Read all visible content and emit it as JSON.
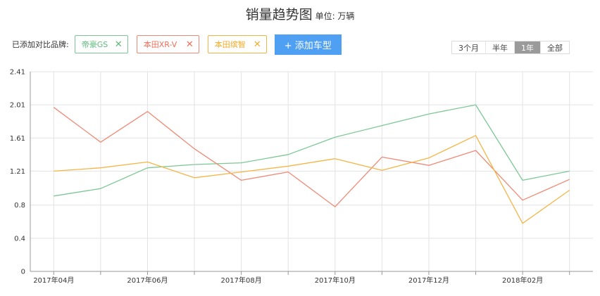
{
  "header": {
    "title": "销量趋势图",
    "unit": "单位: 万辆"
  },
  "compare": {
    "label": "已添加对比品牌:",
    "chips": [
      {
        "label": "帝豪GS",
        "color": "#5db97b"
      },
      {
        "label": "本田XR-V",
        "color": "#ef6e5a"
      },
      {
        "label": "本田缤智",
        "color": "#f3ab27"
      }
    ],
    "add_button": "+ 添加车型"
  },
  "range_buttons": {
    "items": [
      "3个月",
      "半年",
      "1年",
      "全部"
    ],
    "active": "1年"
  },
  "chart_data": {
    "type": "line",
    "title": "销量趋势图",
    "x": [
      "2017-04",
      "2017-05",
      "2017-06",
      "2017-07",
      "2017-08",
      "2017-09",
      "2017-10",
      "2017-11",
      "2017-12",
      "2018-01",
      "2018-02",
      "2018-03"
    ],
    "x_tick_labels": [
      "2017年04月",
      "",
      "2017年06月",
      "",
      "2017年08月",
      "",
      "2017年10月",
      "",
      "2017年12月",
      "",
      "2018年02月",
      ""
    ],
    "y_ticks": [
      "0",
      "0.4",
      "0.8",
      "1.21",
      "1.61",
      "2.01",
      "2.41"
    ],
    "ylim": [
      0,
      2.41
    ],
    "grid": true,
    "series": [
      {
        "name": "帝豪GS",
        "color": "#7cc894",
        "values": [
          0.91,
          1.0,
          1.25,
          1.29,
          1.31,
          1.41,
          1.62,
          1.76,
          1.9,
          2.01,
          1.1,
          1.21
        ]
      },
      {
        "name": "本田XR-V",
        "color": "#ef8a76",
        "values": [
          1.98,
          1.56,
          1.93,
          1.48,
          1.1,
          1.2,
          0.78,
          1.38,
          1.28,
          1.46,
          0.86,
          1.11
        ]
      },
      {
        "name": "本田缤智",
        "color": "#f4b547",
        "values": [
          1.21,
          1.25,
          1.32,
          1.13,
          1.2,
          1.27,
          1.36,
          1.22,
          1.37,
          1.64,
          0.58,
          0.98
        ]
      }
    ]
  }
}
